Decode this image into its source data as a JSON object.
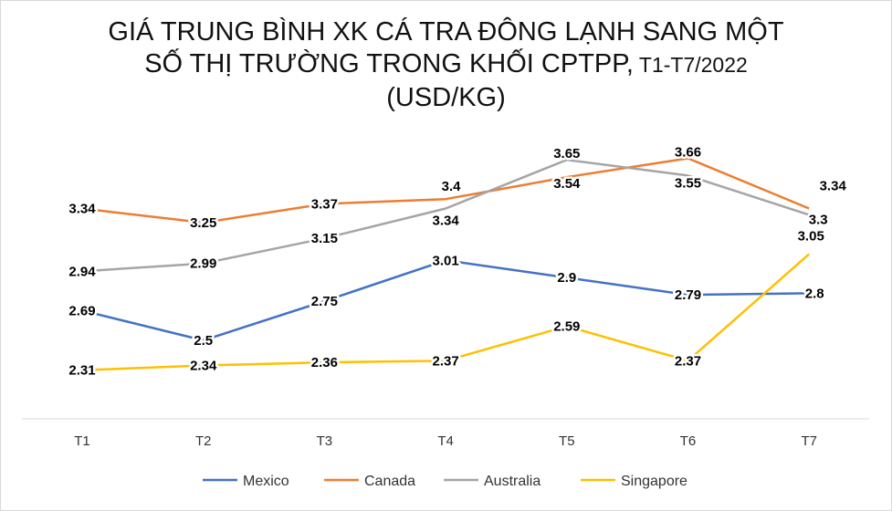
{
  "chart_data": {
    "type": "line",
    "title_line1": "GIÁ TRUNG BÌNH XK CÁ TRA ĐÔNG LẠNH SANG MỘT",
    "title_line2_main": "SỐ THỊ TRƯỜNG TRONG KHỐI CPTPP,",
    "title_line2_small": " T1-T7/2022",
    "subtitle": "(USD/KG)",
    "categories": [
      "T1",
      "T2",
      "T3",
      "T4",
      "T5",
      "T6",
      "T7"
    ],
    "ylim": [
      2,
      4
    ],
    "grid": false,
    "legend_position": "bottom",
    "series": [
      {
        "name": "Mexico",
        "color": "#4472C4",
        "values": [
          2.69,
          2.5,
          2.75,
          3.01,
          2.9,
          2.79,
          2.8
        ]
      },
      {
        "name": "Canada",
        "color": "#ED7D31",
        "values": [
          3.34,
          3.25,
          3.37,
          3.4,
          3.54,
          3.66,
          3.34
        ]
      },
      {
        "name": "Australia",
        "color": "#A5A5A5",
        "values": [
          2.94,
          2.99,
          3.15,
          3.34,
          3.65,
          3.55,
          3.3
        ]
      },
      {
        "name": "Singapore",
        "color": "#FFC000",
        "values": [
          2.31,
          2.34,
          2.36,
          2.37,
          2.59,
          2.37,
          3.05
        ]
      }
    ]
  }
}
